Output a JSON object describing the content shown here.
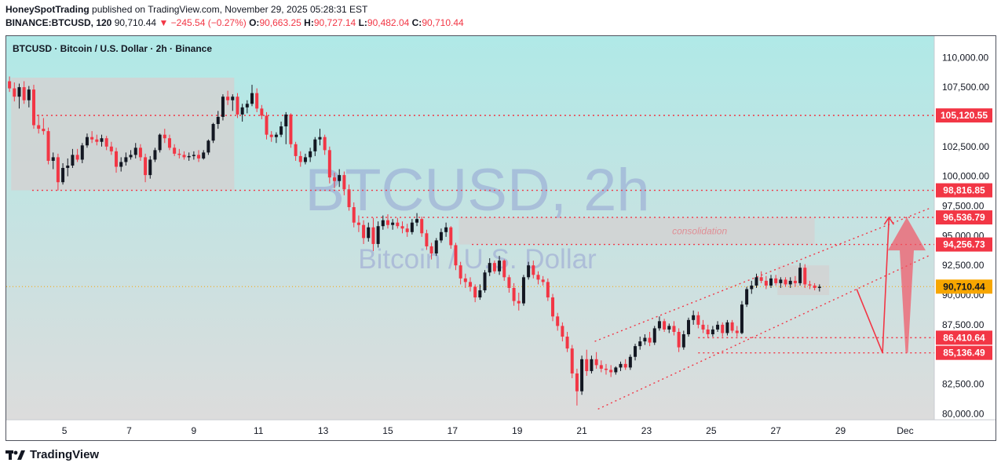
{
  "header": {
    "author": "HoneySpotTrading",
    "published_text": "published on TradingView.com, November 29, 2025 05:28:31 EST",
    "symbol": "BINANCE:BTCUSD, 120",
    "last": "90,710.44",
    "change_arrow": "▼",
    "change": "−245.54 (−0.27%)",
    "o_label": "O:",
    "o_value": "90,663.25",
    "h_label": "H:",
    "h_value": "90,727.14",
    "l_label": "L:",
    "l_value": "90,482.04",
    "c_label": "C:",
    "c_value": "90,710.44"
  },
  "footer": {
    "brand": "TradingView",
    "logo_icon": "tradingview-logo-icon"
  },
  "chart_data": {
    "type": "candlestick",
    "title": "BTCUSD · Bitcoin / U.S. Dollar · 2h · Binance",
    "watermark_symbol": "BTCUSD, 2h",
    "watermark_name": "Bitcoin / U.S. Dollar",
    "annotation": "consolidation",
    "ylim": [
      79500,
      111800
    ],
    "x_range": [
      3.2,
      31.9
    ],
    "x_ticks": [
      {
        "x": 5,
        "label": "5"
      },
      {
        "x": 7,
        "label": "7"
      },
      {
        "x": 9,
        "label": "9"
      },
      {
        "x": 11,
        "label": "11"
      },
      {
        "x": 13,
        "label": "13"
      },
      {
        "x": 15,
        "label": "15"
      },
      {
        "x": 17,
        "label": "17"
      },
      {
        "x": 19,
        "label": "19"
      },
      {
        "x": 21,
        "label": "21"
      },
      {
        "x": 23,
        "label": "23"
      },
      {
        "x": 25,
        "label": "25"
      },
      {
        "x": 27,
        "label": "27"
      },
      {
        "x": 29,
        "label": "29"
      },
      {
        "x": 31,
        "label": "Dec"
      }
    ],
    "y_ticks": [
      {
        "v": 110000,
        "label": "110,000.00"
      },
      {
        "v": 107500,
        "label": "107,500.00"
      },
      {
        "v": 102500,
        "label": "102,500.00"
      },
      {
        "v": 100000,
        "label": "100,000.00"
      },
      {
        "v": 97500,
        "label": "97,500.00"
      },
      {
        "v": 95000,
        "label": "95,000.00"
      },
      {
        "v": 92500,
        "label": "92,500.00"
      },
      {
        "v": 90000,
        "label": "90,000.00"
      },
      {
        "v": 87500,
        "label": "87,500.00"
      },
      {
        "v": 82500,
        "label": "82,500.00"
      },
      {
        "v": 80000,
        "label": "80,000.00"
      }
    ],
    "levels": [
      {
        "value": 105120.55,
        "label": "105,120.55",
        "x_start": 4.0
      },
      {
        "value": 98816.85,
        "label": "98,816.85",
        "x_start": 4.0
      },
      {
        "value": 96536.79,
        "label": "96,536.79",
        "x_start": 14.2
      },
      {
        "value": 94256.73,
        "label": "94,256.73",
        "x_start": 17.6
      },
      {
        "value": 86410.64,
        "label": "86,410.64",
        "x_start": 24.6
      },
      {
        "value": 85136.49,
        "label": "85,136.49",
        "x_start": 24.6
      }
    ],
    "last_price": {
      "value": 90710.44,
      "label": "90,710.44"
    },
    "zones": [
      {
        "x0": 3.35,
        "x1": 10.25,
        "y0": 98816.85,
        "y1": 108300
      },
      {
        "x0": 17.2,
        "x1": 28.2,
        "y0": 94256.73,
        "y1": 96536.79
      },
      {
        "x0": 27.05,
        "x1": 28.65,
        "y0": 90000,
        "y1": 92500
      }
    ],
    "channel": [
      {
        "x0": 21.4,
        "y0": 86100,
        "x1": 31.8,
        "y1": 97350
      },
      {
        "x0": 21.5,
        "y0": 80400,
        "x1": 31.8,
        "y1": 93400
      }
    ],
    "projection": {
      "points": [
        [
          29.5,
          90500
        ],
        [
          30.3,
          85136.49
        ],
        [
          30.5,
          96536.79
        ]
      ],
      "arrow_tip": [
        30.5,
        96536.79
      ]
    },
    "big_arrow": {
      "x": 31.05,
      "y_base": 85136.49,
      "y_tip": 96536.79
    },
    "ohlc": [
      [
        3.3,
        108000,
        108400,
        107100,
        107400
      ],
      [
        3.45,
        107400,
        107900,
        106300,
        106700
      ],
      [
        3.6,
        106700,
        107800,
        105700,
        107500
      ],
      [
        3.75,
        107500,
        108000,
        106100,
        106400
      ],
      [
        3.9,
        106400,
        107600,
        105800,
        107300
      ],
      [
        4.05,
        107300,
        107700,
        104000,
        104300
      ],
      [
        4.2,
        104300,
        105200,
        103600,
        104000
      ],
      [
        4.35,
        104000,
        104900,
        103500,
        103800
      ],
      [
        4.5,
        103800,
        104100,
        101000,
        101300
      ],
      [
        4.65,
        101300,
        102000,
        100600,
        101600
      ],
      [
        4.8,
        101600,
        101900,
        98800,
        99500
      ],
      [
        4.95,
        99500,
        101100,
        99300,
        100700
      ],
      [
        5.1,
        100700,
        101500,
        100000,
        100900
      ],
      [
        5.25,
        100900,
        102300,
        100700,
        101800
      ],
      [
        5.4,
        101800,
        102300,
        101200,
        101400
      ],
      [
        5.55,
        101400,
        102800,
        101100,
        102600
      ],
      [
        5.7,
        102600,
        103600,
        102400,
        103300
      ],
      [
        5.85,
        103300,
        103800,
        102800,
        103100
      ],
      [
        6.0,
        103100,
        103500,
        102600,
        102900
      ],
      [
        6.15,
        102900,
        103500,
        102500,
        103200
      ],
      [
        6.3,
        103200,
        103400,
        102200,
        102500
      ],
      [
        6.45,
        102500,
        102900,
        101800,
        102100
      ],
      [
        6.6,
        102100,
        102400,
        100300,
        100800
      ],
      [
        6.75,
        100800,
        101600,
        100400,
        101200
      ],
      [
        6.9,
        101200,
        102000,
        100900,
        101600
      ],
      [
        7.05,
        101600,
        102200,
        101400,
        101800
      ],
      [
        7.2,
        101800,
        102800,
        101500,
        102400
      ],
      [
        7.35,
        102400,
        102700,
        101300,
        101600
      ],
      [
        7.5,
        101600,
        101900,
        99500,
        100100
      ],
      [
        7.65,
        100100,
        101700,
        99800,
        101400
      ],
      [
        7.8,
        101400,
        102400,
        101200,
        102200
      ],
      [
        7.95,
        102200,
        103600,
        102000,
        103500
      ],
      [
        8.1,
        103500,
        104000,
        102800,
        103200
      ],
      [
        8.25,
        103200,
        103500,
        102200,
        102400
      ],
      [
        8.4,
        102400,
        102700,
        101700,
        101900
      ],
      [
        8.55,
        101900,
        102300,
        101500,
        101800
      ],
      [
        8.7,
        101800,
        102100,
        101400,
        101600
      ],
      [
        8.85,
        101600,
        102000,
        101300,
        101700
      ],
      [
        9.0,
        101700,
        102100,
        101400,
        101800
      ],
      [
        9.15,
        101800,
        102200,
        101200,
        101500
      ],
      [
        9.3,
        101500,
        102200,
        101400,
        102000
      ],
      [
        9.45,
        102000,
        103100,
        101800,
        103000
      ],
      [
        9.6,
        103000,
        104500,
        102800,
        104400
      ],
      [
        9.75,
        104400,
        105500,
        104000,
        105000
      ],
      [
        9.9,
        105000,
        106900,
        104700,
        106700
      ],
      [
        10.05,
        106700,
        107200,
        106000,
        106400
      ],
      [
        10.2,
        106400,
        106900,
        105500,
        106700
      ],
      [
        10.35,
        106700,
        107000,
        104900,
        105200
      ],
      [
        10.5,
        105200,
        106100,
        104600,
        105800
      ],
      [
        10.65,
        105800,
        106400,
        105300,
        106100
      ],
      [
        10.8,
        106100,
        107700,
        105900,
        107000
      ],
      [
        10.95,
        107000,
        107400,
        105400,
        105700
      ],
      [
        11.1,
        105700,
        106000,
        104800,
        105100
      ],
      [
        11.25,
        105100,
        105400,
        103100,
        103500
      ],
      [
        11.4,
        103500,
        103800,
        102900,
        103300
      ],
      [
        11.55,
        103300,
        103700,
        102800,
        103500
      ],
      [
        11.7,
        103500,
        104600,
        103300,
        104200
      ],
      [
        11.85,
        104200,
        105400,
        102700,
        105200
      ],
      [
        12.0,
        105200,
        105300,
        102400,
        102700
      ],
      [
        12.15,
        102700,
        102900,
        101300,
        101700
      ],
      [
        12.3,
        101700,
        102100,
        100800,
        101200
      ],
      [
        12.45,
        101200,
        101900,
        101000,
        101600
      ],
      [
        12.6,
        101600,
        102400,
        101200,
        102100
      ],
      [
        12.75,
        102100,
        103300,
        101700,
        103100
      ],
      [
        12.9,
        103100,
        104000,
        102600,
        103300
      ],
      [
        13.05,
        103300,
        103500,
        101800,
        102200
      ],
      [
        13.2,
        102200,
        102500,
        99400,
        99900
      ],
      [
        13.35,
        99900,
        100300,
        99000,
        99600
      ],
      [
        13.5,
        99600,
        100600,
        99100,
        100100
      ],
      [
        13.65,
        100100,
        100400,
        98400,
        98900
      ],
      [
        13.8,
        98900,
        99300,
        97100,
        97400
      ],
      [
        13.95,
        97400,
        97800,
        95700,
        96100
      ],
      [
        14.1,
        96100,
        96700,
        95300,
        95900
      ],
      [
        14.25,
        95900,
        96300,
        94300,
        94800
      ],
      [
        14.4,
        94800,
        96100,
        94500,
        95700
      ],
      [
        14.55,
        95700,
        96500,
        93700,
        94300
      ],
      [
        14.7,
        94300,
        96200,
        94000,
        95800
      ],
      [
        14.85,
        95800,
        96700,
        95500,
        96300
      ],
      [
        15.0,
        96300,
        96800,
        95600,
        95900
      ],
      [
        15.15,
        95900,
        96400,
        95500,
        96100
      ],
      [
        15.3,
        96100,
        96500,
        95600,
        95800
      ],
      [
        15.45,
        95800,
        96200,
        95200,
        95600
      ],
      [
        15.6,
        95600,
        96000,
        94900,
        95300
      ],
      [
        15.75,
        95300,
        96400,
        95100,
        96100
      ],
      [
        15.9,
        96100,
        96900,
        95800,
        96400
      ],
      [
        16.05,
        96400,
        96600,
        94900,
        95200
      ],
      [
        16.2,
        95200,
        95500,
        93800,
        94100
      ],
      [
        16.35,
        94100,
        94400,
        93000,
        93500
      ],
      [
        16.5,
        93500,
        94800,
        93300,
        94600
      ],
      [
        16.65,
        94600,
        95600,
        94400,
        95300
      ],
      [
        16.8,
        95300,
        96100,
        94900,
        95700
      ],
      [
        16.95,
        95700,
        95800,
        93900,
        94200
      ],
      [
        17.1,
        94200,
        94400,
        92100,
        92500
      ],
      [
        17.25,
        92500,
        92800,
        90900,
        91400
      ],
      [
        17.4,
        91400,
        91800,
        90600,
        91100
      ],
      [
        17.55,
        91100,
        91500,
        90300,
        90700
      ],
      [
        17.7,
        90700,
        90900,
        89400,
        89800
      ],
      [
        17.85,
        89800,
        90900,
        89600,
        90400
      ],
      [
        18.0,
        90400,
        92100,
        90200,
        91900
      ],
      [
        18.15,
        91900,
        93100,
        91600,
        92700
      ],
      [
        18.3,
        92700,
        92900,
        91800,
        92000
      ],
      [
        18.45,
        92000,
        93300,
        91700,
        92900
      ],
      [
        18.6,
        92900,
        93000,
        91200,
        91500
      ],
      [
        18.75,
        91500,
        91700,
        90200,
        90600
      ],
      [
        18.9,
        90600,
        91000,
        89100,
        89500
      ],
      [
        19.05,
        89500,
        90200,
        88700,
        89300
      ],
      [
        19.2,
        89300,
        91700,
        89100,
        91500
      ],
      [
        19.35,
        91500,
        92800,
        91300,
        92500
      ],
      [
        19.5,
        92500,
        92900,
        91400,
        91700
      ],
      [
        19.65,
        91700,
        92000,
        90900,
        91300
      ],
      [
        19.8,
        91300,
        91600,
        90800,
        91100
      ],
      [
        19.95,
        91100,
        91400,
        89500,
        89800
      ],
      [
        20.1,
        89800,
        90100,
        87800,
        88200
      ],
      [
        20.25,
        88200,
        88500,
        87000,
        87400
      ],
      [
        20.4,
        87400,
        87700,
        86100,
        86500
      ],
      [
        20.55,
        86500,
        86900,
        85200,
        85500
      ],
      [
        20.7,
        85500,
        85800,
        83000,
        83400
      ],
      [
        20.85,
        83400,
        83800,
        80700,
        81900
      ],
      [
        21.0,
        81900,
        84900,
        81600,
        84600
      ],
      [
        21.15,
        84600,
        85400,
        83200,
        83600
      ],
      [
        21.3,
        83600,
        84900,
        83400,
        84600
      ],
      [
        21.45,
        84600,
        85200,
        83800,
        84100
      ],
      [
        21.6,
        84100,
        84500,
        83500,
        83800
      ],
      [
        21.75,
        83800,
        84200,
        83300,
        83700
      ],
      [
        21.9,
        83700,
        84100,
        83100,
        83500
      ],
      [
        22.05,
        83500,
        84000,
        83300,
        83900
      ],
      [
        22.2,
        83900,
        84400,
        83600,
        84200
      ],
      [
        22.35,
        84200,
        84600,
        83700,
        83900
      ],
      [
        22.5,
        83900,
        85000,
        83700,
        84800
      ],
      [
        22.65,
        84800,
        85900,
        84500,
        85700
      ],
      [
        22.8,
        85700,
        86500,
        85400,
        86100
      ],
      [
        22.95,
        86100,
        86700,
        85800,
        86400
      ],
      [
        23.1,
        86400,
        86900,
        85700,
        86000
      ],
      [
        23.25,
        86000,
        87400,
        85800,
        87200
      ],
      [
        23.4,
        87200,
        88200,
        87000,
        87800
      ],
      [
        23.55,
        87800,
        88000,
        86900,
        87100
      ],
      [
        23.7,
        87100,
        87600,
        86800,
        87400
      ],
      [
        23.85,
        87400,
        87800,
        86600,
        86900
      ],
      [
        24.0,
        86900,
        87200,
        85200,
        85600
      ],
      [
        24.15,
        85600,
        87000,
        85400,
        86700
      ],
      [
        24.3,
        86700,
        88100,
        86500,
        87900
      ],
      [
        24.45,
        87900,
        88700,
        87500,
        88300
      ],
      [
        24.6,
        88300,
        88600,
        87200,
        87500
      ],
      [
        24.75,
        87500,
        87900,
        86800,
        87100
      ],
      [
        24.9,
        87100,
        87500,
        86400,
        86700
      ],
      [
        25.05,
        86700,
        87400,
        86500,
        87100
      ],
      [
        25.2,
        87100,
        87800,
        86900,
        87500
      ],
      [
        25.35,
        87500,
        87700,
        86500,
        86800
      ],
      [
        25.5,
        86800,
        87900,
        86600,
        87700
      ],
      [
        25.65,
        87700,
        87900,
        86800,
        87000
      ],
      [
        25.8,
        87000,
        87400,
        86500,
        86800
      ],
      [
        25.95,
        86800,
        89500,
        86700,
        89200
      ],
      [
        26.1,
        89200,
        90700,
        89000,
        90500
      ],
      [
        26.25,
        90500,
        91200,
        90100,
        90800
      ],
      [
        26.4,
        90800,
        91800,
        90600,
        91500
      ],
      [
        26.55,
        91500,
        92000,
        91000,
        91200
      ],
      [
        26.7,
        91200,
        91600,
        90500,
        90800
      ],
      [
        26.85,
        90800,
        91700,
        90600,
        91400
      ],
      [
        27.0,
        91400,
        91700,
        90800,
        91000
      ],
      [
        27.15,
        91000,
        91500,
        90600,
        91300
      ],
      [
        27.3,
        91300,
        91500,
        90700,
        90900
      ],
      [
        27.45,
        90900,
        91500,
        90600,
        91200
      ],
      [
        27.6,
        91200,
        91600,
        90700,
        91000
      ],
      [
        27.75,
        91000,
        92700,
        90800,
        92300
      ],
      [
        27.9,
        92300,
        92600,
        90600,
        90900
      ],
      [
        28.05,
        90900,
        91200,
        90500,
        90800
      ],
      [
        28.2,
        90800,
        91000,
        90400,
        90600
      ],
      [
        28.35,
        90600,
        90900,
        90300,
        90700
      ]
    ]
  }
}
